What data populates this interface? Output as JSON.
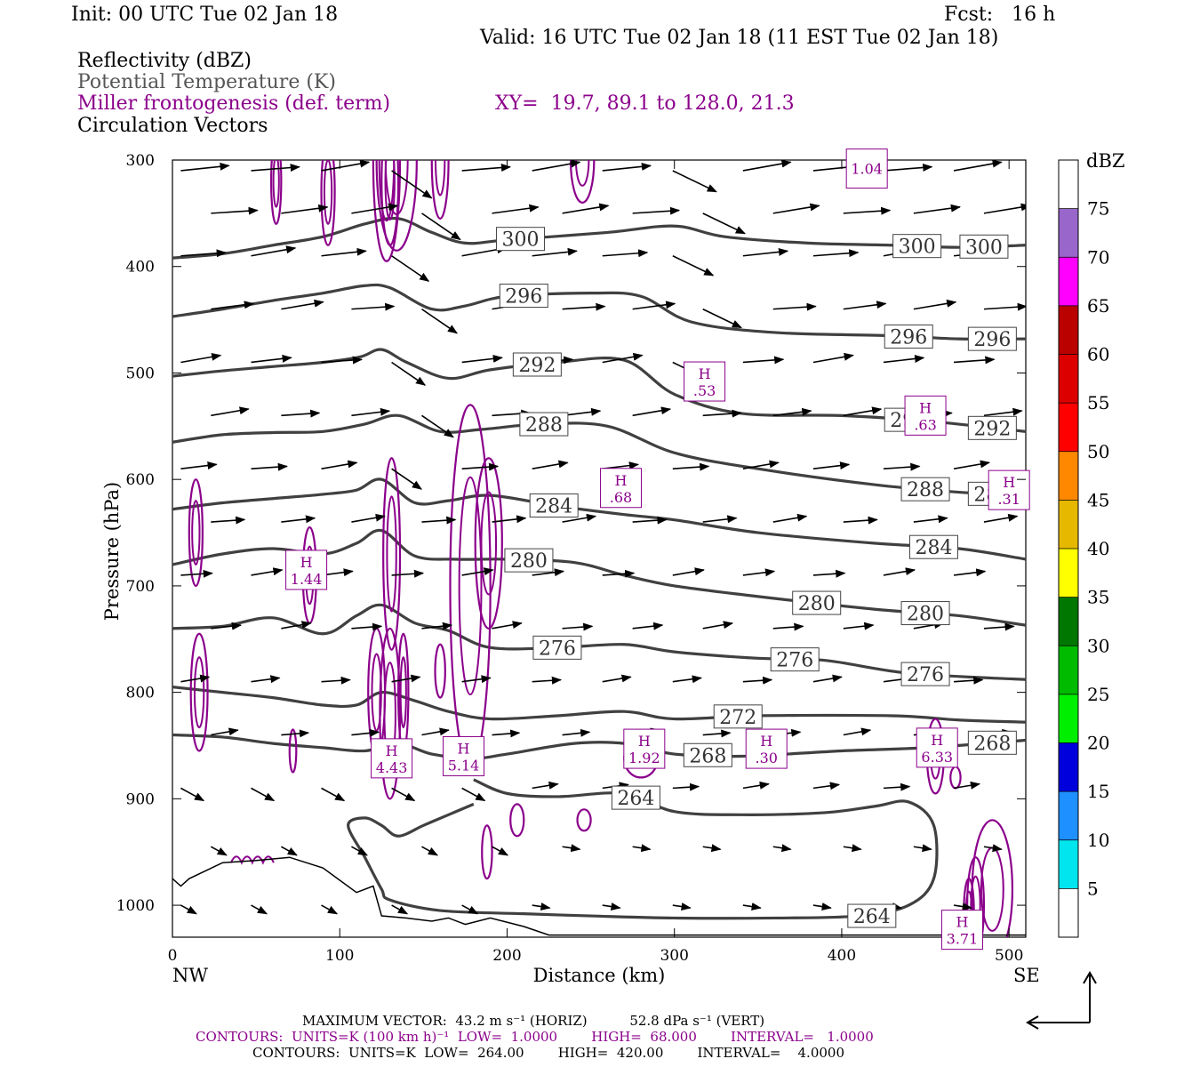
{
  "header": {
    "init": "Init: 00 UTC Tue 02 Jan 18",
    "fcst": "Fcst:   16 h",
    "valid": "Valid: 16 UTC Tue 02 Jan 18 (11 EST Tue 02 Jan 18)"
  },
  "fields": {
    "reflectivity": "Reflectivity (dBZ)",
    "potential_temperature": "Potential Temperature (K)",
    "miller": "Miller frontogenesis (def. term)",
    "xy": "XY=  19.7, 89.1 to 128.0, 21.3",
    "circulation": "Circulation Vectors"
  },
  "axes": {
    "ylabel": "Pressure (hPa)",
    "xlabel": "Distance (km)",
    "left_end": "NW",
    "right_end": "SE",
    "y_ticks": [
      "300",
      "400",
      "500",
      "600",
      "700",
      "800",
      "900",
      "1000"
    ],
    "x_ticks": [
      "0",
      "100",
      "200",
      "300",
      "400",
      "500"
    ]
  },
  "colorbar": {
    "unit": "dBZ",
    "labels": [
      "75",
      "70",
      "65",
      "60",
      "55",
      "50",
      "45",
      "40",
      "35",
      "30",
      "25",
      "20",
      "15",
      "10",
      "5"
    ],
    "colors": [
      "#ffffff",
      "#9966cc",
      "#ff00ff",
      "#bb0000",
      "#dd0000",
      "#ff0000",
      "#ff8800",
      "#e6b800",
      "#ffff00",
      "#007700",
      "#00bb00",
      "#00ee00",
      "#0000dd",
      "#1e90ff",
      "#00e5ee",
      "#ffffff"
    ]
  },
  "footer": {
    "max_vector": "MAXIMUM VECTOR:  43.2 m s⁻¹ (HORIZ)          52.8 dPa s⁻¹ (VERT)",
    "contours_purple": "CONTOURS:  UNITS=K (100 km h)⁻¹  LOW=  1.0000        HIGH=  68.000        INTERVAL=   1.0000",
    "contours_black": "CONTOURS:  UNITS=K  LOW=  264.00        HIGH=  420.00        INTERVAL=    4.0000"
  },
  "chart_data": {
    "type": "cross-section",
    "title": "",
    "xlabel": "Distance (km)",
    "ylabel": "Pressure (hPa)",
    "xlim": [
      0,
      510
    ],
    "ylim": [
      1030,
      300
    ],
    "isentropes": [
      {
        "theta": "300",
        "points": [
          [
            0,
            392
          ],
          [
            30,
            388
          ],
          [
            60,
            380
          ],
          [
            90,
            372
          ],
          [
            115,
            360
          ],
          [
            135,
            355
          ],
          [
            155,
            368
          ],
          [
            175,
            378
          ],
          [
            200,
            375
          ],
          [
            260,
            368
          ],
          [
            300,
            362
          ],
          [
            330,
            372
          ],
          [
            380,
            378
          ],
          [
            430,
            380
          ],
          [
            470,
            382
          ],
          [
            510,
            380
          ]
        ]
      },
      {
        "theta": "296",
        "points": [
          [
            0,
            447
          ],
          [
            30,
            440
          ],
          [
            60,
            432
          ],
          [
            90,
            425
          ],
          [
            115,
            418
          ],
          [
            130,
            420
          ],
          [
            155,
            440
          ],
          [
            175,
            437
          ],
          [
            200,
            428
          ],
          [
            250,
            425
          ],
          [
            280,
            428
          ],
          [
            310,
            452
          ],
          [
            360,
            462
          ],
          [
            430,
            465
          ],
          [
            470,
            468
          ],
          [
            510,
            468
          ]
        ]
      },
      {
        "theta": "292",
        "points": [
          [
            0,
            503
          ],
          [
            30,
            498
          ],
          [
            60,
            494
          ],
          [
            90,
            490
          ],
          [
            112,
            485
          ],
          [
            125,
            478
          ],
          [
            140,
            490
          ],
          [
            165,
            505
          ],
          [
            190,
            497
          ],
          [
            230,
            490
          ],
          [
            270,
            488
          ],
          [
            300,
            520
          ],
          [
            340,
            538
          ],
          [
            400,
            540
          ],
          [
            450,
            545
          ],
          [
            510,
            555
          ]
        ]
      },
      {
        "theta": "288",
        "points": [
          [
            0,
            565
          ],
          [
            30,
            558
          ],
          [
            60,
            556
          ],
          [
            90,
            555
          ],
          [
            115,
            548
          ],
          [
            135,
            540
          ],
          [
            160,
            555
          ],
          [
            185,
            553
          ],
          [
            220,
            548
          ],
          [
            260,
            550
          ],
          [
            300,
            575
          ],
          [
            350,
            590
          ],
          [
            420,
            605
          ],
          [
            470,
            612
          ],
          [
            510,
            615
          ]
        ]
      },
      {
        "theta": "284",
        "points": [
          [
            0,
            628
          ],
          [
            30,
            622
          ],
          [
            60,
            618
          ],
          [
            90,
            614
          ],
          [
            110,
            610
          ],
          [
            125,
            600
          ],
          [
            145,
            622
          ],
          [
            165,
            620
          ],
          [
            190,
            615
          ],
          [
            230,
            625
          ],
          [
            270,
            633
          ],
          [
            300,
            638
          ],
          [
            350,
            650
          ],
          [
            420,
            660
          ],
          [
            470,
            665
          ],
          [
            510,
            675
          ]
        ]
      },
      {
        "theta": "280",
        "points": [
          [
            0,
            680
          ],
          [
            30,
            670
          ],
          [
            60,
            665
          ],
          [
            90,
            670
          ],
          [
            110,
            660
          ],
          [
            125,
            648
          ],
          [
            145,
            672
          ],
          [
            170,
            675
          ],
          [
            200,
            675
          ],
          [
            240,
            678
          ],
          [
            270,
            690
          ],
          [
            300,
            700
          ],
          [
            350,
            710
          ],
          [
            420,
            722
          ],
          [
            470,
            728
          ],
          [
            510,
            737
          ]
        ]
      },
      {
        "theta": "276",
        "points": [
          [
            0,
            740
          ],
          [
            30,
            738
          ],
          [
            60,
            730
          ],
          [
            90,
            745
          ],
          [
            110,
            728
          ],
          [
            125,
            718
          ],
          [
            145,
            735
          ],
          [
            165,
            742
          ],
          [
            190,
            758
          ],
          [
            230,
            758
          ],
          [
            270,
            755
          ],
          [
            300,
            762
          ],
          [
            350,
            768
          ],
          [
            390,
            770
          ],
          [
            440,
            782
          ],
          [
            510,
            788
          ]
        ]
      },
      {
        "theta": "272",
        "points": [
          [
            0,
            795
          ],
          [
            30,
            800
          ],
          [
            60,
            805
          ],
          [
            90,
            812
          ],
          [
            110,
            812
          ],
          [
            125,
            800
          ],
          [
            145,
            808
          ],
          [
            165,
            818
          ],
          [
            190,
            825
          ],
          [
            230,
            822
          ],
          [
            270,
            818
          ],
          [
            300,
            825
          ],
          [
            350,
            822
          ],
          [
            430,
            822
          ],
          [
            470,
            826
          ],
          [
            510,
            828
          ]
        ]
      },
      {
        "theta": "268",
        "points": [
          [
            0,
            840
          ],
          [
            30,
            842
          ],
          [
            60,
            848
          ],
          [
            90,
            852
          ],
          [
            115,
            855
          ],
          [
            135,
            848
          ],
          [
            155,
            858
          ],
          [
            180,
            862
          ],
          [
            200,
            858
          ],
          [
            240,
            848
          ],
          [
            270,
            848
          ],
          [
            300,
            858
          ],
          [
            340,
            860
          ],
          [
            400,
            855
          ],
          [
            450,
            852
          ],
          [
            510,
            845
          ]
        ]
      },
      {
        "theta": "264",
        "points": [
          [
            180,
            882
          ],
          [
            200,
            895
          ],
          [
            230,
            898
          ],
          [
            270,
            895
          ],
          [
            300,
            912
          ],
          [
            340,
            915
          ],
          [
            390,
            913
          ],
          [
            420,
            907
          ],
          [
            440,
            903
          ],
          [
            455,
            925
          ],
          [
            455,
            975
          ],
          [
            440,
            1000
          ],
          [
            410,
            1010
          ],
          [
            360,
            1012
          ],
          [
            300,
            1012
          ],
          [
            250,
            1010
          ],
          [
            210,
            1008
          ],
          [
            160,
            1005
          ],
          [
            130,
            995
          ],
          [
            125,
            985
          ],
          [
            115,
            955
          ],
          [
            105,
            925
          ],
          [
            115,
            918
          ],
          [
            125,
            925
          ],
          [
            135,
            935
          ],
          [
            150,
            925
          ],
          [
            165,
            915
          ],
          [
            180,
            905
          ]
        ]
      }
    ],
    "frontogenesis_maxima": [
      {
        "label": "H",
        "value": "1.44",
        "x": 80,
        "p": 685
      },
      {
        "label": "H",
        "value": "4.43",
        "x": 131,
        "p": 862
      },
      {
        "label": "H",
        "value": "5.14",
        "x": 174,
        "p": 860
      },
      {
        "label": "H",
        "value": "1.92",
        "x": 282,
        "p": 853
      },
      {
        "label": "H",
        "value": ".68",
        "x": 268,
        "p": 608
      },
      {
        "label": "H",
        "value": ".53",
        "x": 318,
        "p": 508
      },
      {
        "label": "H",
        "value": ".30",
        "x": 355,
        "p": 853
      },
      {
        "label": "H",
        "value": ".63",
        "x": 450,
        "p": 540
      },
      {
        "label": "H",
        "value": "6.33",
        "x": 457,
        "p": 852
      },
      {
        "label": "H",
        "value": ".31",
        "x": 500,
        "p": 610
      },
      {
        "label": "H",
        "value": "3.71",
        "x": 472,
        "p": 1023
      },
      {
        "label": "",
        "value": "1.04",
        "x": 415,
        "p": 308
      }
    ],
    "terrain_pressure": [
      [
        0,
        975
      ],
      [
        5,
        982
      ],
      [
        10,
        975
      ],
      [
        30,
        960
      ],
      [
        50,
        958
      ],
      [
        70,
        955
      ],
      [
        90,
        965
      ],
      [
        110,
        988
      ],
      [
        120,
        982
      ],
      [
        125,
        1010
      ],
      [
        140,
        1012
      ],
      [
        155,
        1015
      ],
      [
        165,
        1012
      ],
      [
        175,
        1018
      ],
      [
        190,
        1012
      ],
      [
        210,
        1020
      ],
      [
        225,
        1028
      ],
      [
        300,
        1028
      ],
      [
        400,
        1028
      ],
      [
        510,
        1028
      ]
    ]
  }
}
